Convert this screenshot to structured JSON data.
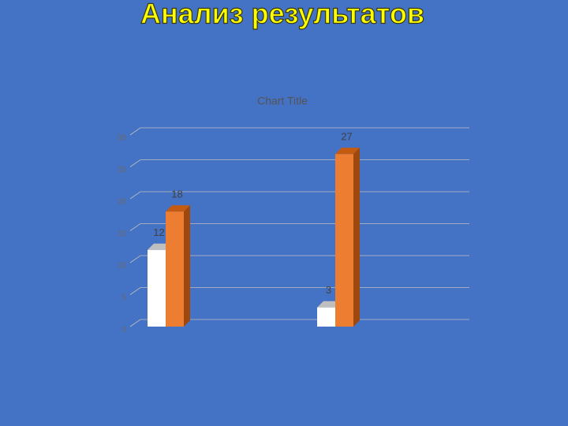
{
  "slide": {
    "title": "Анализ результатов"
  },
  "chart_data": {
    "type": "bar3d",
    "title": "Chart Title",
    "categories": [
      null,
      null
    ],
    "series": [
      {
        "color": "#ffffff",
        "values": [
          12,
          3
        ]
      },
      {
        "color": "#ed7d31",
        "values": [
          18,
          27
        ]
      }
    ],
    "ylim": [
      0,
      30
    ],
    "yticks": [
      0,
      5,
      10,
      15,
      20,
      25,
      30
    ],
    "grid": true
  }
}
